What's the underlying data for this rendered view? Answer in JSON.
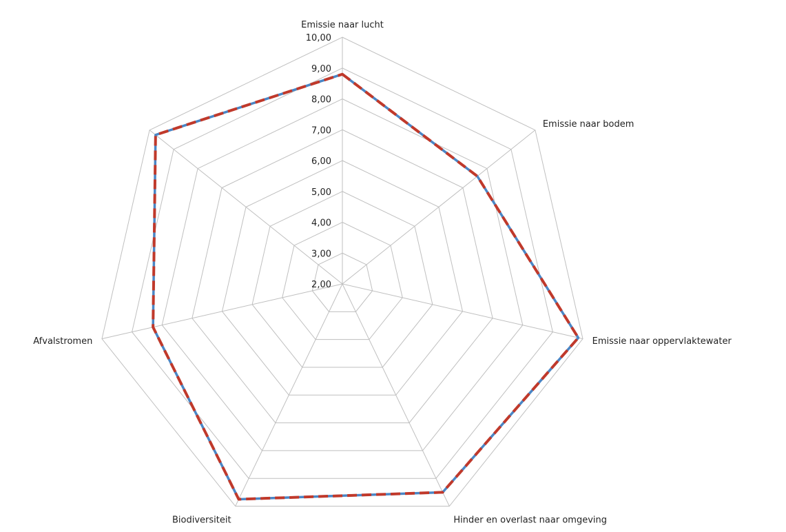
{
  "chart_data": {
    "type": "radar",
    "categories": [
      "Emissie naar lucht",
      "Emissie naar bodem",
      "Emissie naar oppervlaktewater",
      "Hinder en overlast naar omgeving",
      "Biodiversiteit",
      "Afvalstromen",
      ""
    ],
    "axis_labels": [
      "2,00",
      "3,00",
      "4,00",
      "5,00",
      "6,00",
      "7,00",
      "8,00",
      "9,00",
      "10,00"
    ],
    "rmin": 2,
    "rmax": 10,
    "grid": true,
    "legend": "none",
    "series": [
      {
        "color": "#4a86c5",
        "style": "solid",
        "values": [
          8.8,
          7.6,
          9.85,
          9.5,
          9.75,
          8.3,
          9.75
        ]
      },
      {
        "color": "#c0392b",
        "style": "dashed",
        "values": [
          8.8,
          7.6,
          9.85,
          9.5,
          9.75,
          8.3,
          9.75
        ]
      }
    ]
  }
}
